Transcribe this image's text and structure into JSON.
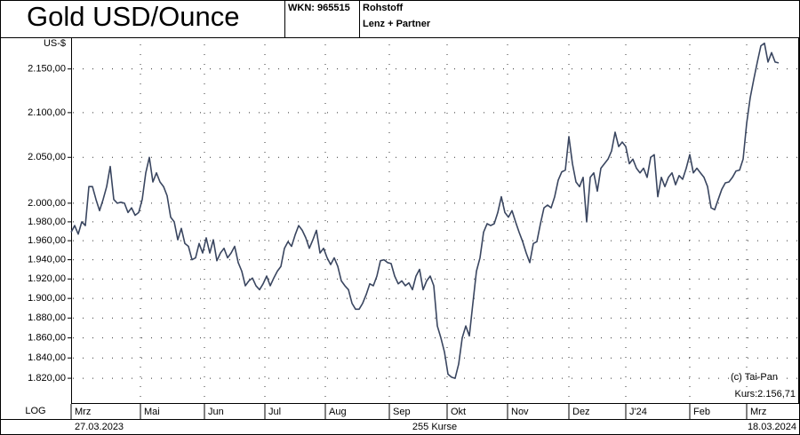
{
  "chart_data": {
    "type": "line",
    "title": "Gold USD/Ounce",
    "wkn": "WKN: 965515",
    "category": "Rohstoff",
    "source": "Lenz + Partner",
    "y_label": "US-$",
    "scale_label": "LOG",
    "log_scale": true,
    "grid": true,
    "color": "#3a4660",
    "start_date": "27.03.2023",
    "end_date": "18.03.2024",
    "count_label": "255 Kurse",
    "copyright": "(c) Tai-Pan",
    "last_price_label": "Kurs:2.156,71",
    "x_labels": [
      "Mrz",
      "Mai",
      "Jun",
      "Jul",
      "Aug",
      "Sep",
      "Okt",
      "Nov",
      "Dez",
      "J'24",
      "Feb",
      "Mrz"
    ],
    "ylim": [
      1795,
      2187
    ],
    "yticks": [
      {
        "value": 1820,
        "label": "1.820,00"
      },
      {
        "value": 1840,
        "label": "1.840,00"
      },
      {
        "value": 1860,
        "label": "1.860,00"
      },
      {
        "value": 1880,
        "label": "1.880,00"
      },
      {
        "value": 1900,
        "label": "1.900,00"
      },
      {
        "value": 1920,
        "label": "1.920,00"
      },
      {
        "value": 1940,
        "label": "1.940,00"
      },
      {
        "value": 1960,
        "label": "1.960,00"
      },
      {
        "value": 1980,
        "label": "1.980,00"
      },
      {
        "value": 2000,
        "label": "2.000,00"
      },
      {
        "value": 2050,
        "label": "2.050,00"
      },
      {
        "value": 2100,
        "label": "2.100,00"
      },
      {
        "value": 2150,
        "label": "2.150,00"
      }
    ],
    "values": [
      1969,
      1976,
      1967,
      1980,
      1976,
      2018,
      2018,
      2004,
      1992,
      2004,
      2018,
      2040,
      2004,
      2000,
      2001,
      2000,
      1990,
      1995,
      1987,
      1990,
      2004,
      2033,
      2050,
      2023,
      2033,
      2023,
      2018,
      2008,
      1985,
      1980,
      1961,
      1973,
      1957,
      1954,
      1940,
      1942,
      1957,
      1947,
      1963,
      1947,
      1961,
      1939,
      1947,
      1952,
      1942,
      1947,
      1954,
      1937,
      1928,
      1913,
      1918,
      1921,
      1913,
      1909,
      1915,
      1923,
      1913,
      1921,
      1928,
      1933,
      1952,
      1959,
      1954,
      1966,
      1976,
      1971,
      1963,
      1952,
      1961,
      1971,
      1947,
      1952,
      1942,
      1935,
      1942,
      1933,
      1918,
      1913,
      1909,
      1895,
      1889,
      1889,
      1895,
      1904,
      1915,
      1913,
      1923,
      1939,
      1940,
      1937,
      1936,
      1923,
      1915,
      1918,
      1913,
      1916,
      1909,
      1923,
      1930,
      1909,
      1918,
      1923,
      1913,
      1872,
      1860,
      1846,
      1824,
      1821,
      1820,
      1834,
      1860,
      1872,
      1862,
      1895,
      1928,
      1942,
      1969,
      1978,
      1976,
      1978,
      1990,
      2007,
      1990,
      1985,
      1992,
      1980,
      1969,
      1959,
      1947,
      1937,
      1957,
      1959,
      1978,
      1995,
      1998,
      1995,
      2007,
      2025,
      2034,
      2036,
      2073,
      2043,
      2023,
      2018,
      2028,
      1980,
      2028,
      2033,
      2013,
      2038,
      2043,
      2048,
      2057,
      2078,
      2062,
      2067,
      2062,
      2043,
      2048,
      2038,
      2033,
      2038,
      2028,
      2050,
      2053,
      2007,
      2028,
      2018,
      2028,
      2033,
      2020,
      2030,
      2026,
      2038,
      2053,
      2033,
      2038,
      2033,
      2028,
      2018,
      1995,
      1993,
      2004,
      2015,
      2022,
      2023,
      2028,
      2035,
      2036,
      2048,
      2088,
      2117,
      2138,
      2158,
      2177,
      2180,
      2158,
      2169,
      2158,
      2157
    ]
  }
}
